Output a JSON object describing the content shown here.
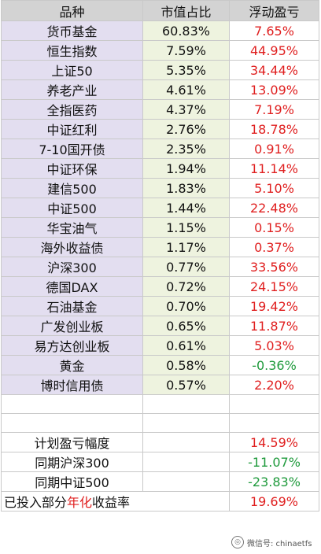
{
  "header": {
    "name": "品种",
    "ratio": "市值占比",
    "pnl": "浮动盈亏"
  },
  "rows": [
    {
      "name": "货币基金",
      "ratio": "60.83%",
      "pnl": "7.65%"
    },
    {
      "name": "恒生指数",
      "ratio": "7.59%",
      "pnl": "44.95%"
    },
    {
      "name": "上证50",
      "ratio": "5.35%",
      "pnl": "34.44%"
    },
    {
      "name": "养老产业",
      "ratio": "4.61%",
      "pnl": "13.09%"
    },
    {
      "name": "全指医药",
      "ratio": "4.37%",
      "pnl": "7.19%"
    },
    {
      "name": "中证红利",
      "ratio": "2.76%",
      "pnl": "18.78%"
    },
    {
      "name": "7-10国开债",
      "ratio": "2.35%",
      "pnl": "0.91%"
    },
    {
      "name": "中证环保",
      "ratio": "1.94%",
      "pnl": "11.14%"
    },
    {
      "name": "建信500",
      "ratio": "1.83%",
      "pnl": "5.10%"
    },
    {
      "name": "中证500",
      "ratio": "1.44%",
      "pnl": "22.48%"
    },
    {
      "name": "华宝油气",
      "ratio": "1.15%",
      "pnl": "0.15%"
    },
    {
      "name": "海外收益债",
      "ratio": "1.17%",
      "pnl": "0.37%"
    },
    {
      "name": "沪深300",
      "ratio": "0.77%",
      "pnl": "33.56%"
    },
    {
      "name": "德国DAX",
      "ratio": "0.72%",
      "pnl": "24.15%"
    },
    {
      "name": "石油基金",
      "ratio": "0.70%",
      "pnl": "19.42%"
    },
    {
      "name": "广发创业板",
      "ratio": "0.65%",
      "pnl": "11.87%"
    },
    {
      "name": "易方达创业板",
      "ratio": "0.61%",
      "pnl": "5.03%"
    },
    {
      "name": "黄金",
      "ratio": "0.58%",
      "pnl": "-0.36%"
    },
    {
      "name": "博时信用债",
      "ratio": "0.57%",
      "pnl": "2.20%"
    }
  ],
  "summary": [
    {
      "name": "计划盈亏幅度",
      "pnl": "14.59%"
    },
    {
      "name": "同期沪深300",
      "pnl": "-11.07%"
    },
    {
      "name": "同期中证500",
      "pnl": "-23.83%"
    }
  ],
  "annual": {
    "prefix": "已投入部分",
    "highlight": "年化",
    "suffix": "收益率",
    "pnl": "19.69%"
  },
  "watermark": {
    "text": "微信号: chinaetfs",
    "icon": "wechat-icon"
  },
  "colors": {
    "positive": "#e02020",
    "negative": "#1f9a3c",
    "header_bg": "#d3d3d3",
    "name_bg": "#e3def0",
    "ratio_bg": "#eef3df"
  }
}
